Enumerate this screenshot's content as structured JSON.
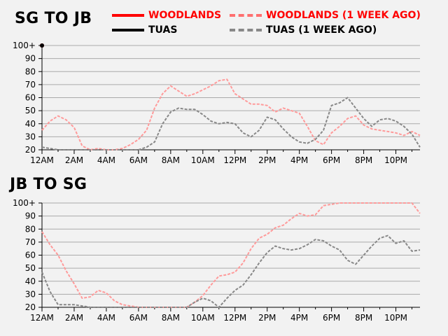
{
  "chart_data": [
    {
      "type": "line",
      "title": "SG TO JB",
      "x_ticks": [
        "12AM",
        "2AM",
        "4AM",
        "6AM",
        "8AM",
        "10AM",
        "12PM",
        "2PM",
        "4PM",
        "6PM",
        "8PM",
        "10PM"
      ],
      "y_ticks": [
        "20",
        "30",
        "40",
        "50",
        "60",
        "70",
        "80",
        "90",
        "100+"
      ],
      "ylim": [
        20,
        100
      ],
      "xlim_hours": [
        0,
        23.5
      ],
      "grid": true,
      "series": [
        {
          "name": "WOODLANDS",
          "color": "#ff0000",
          "style": "solid",
          "x_hours": [
            0
          ],
          "values": [
            100
          ]
        },
        {
          "name": "TUAS",
          "color": "#000000",
          "style": "solid",
          "x_hours": [
            0
          ],
          "values": [
            100
          ]
        },
        {
          "name": "WOODLANDS (1 WEEK AGO)",
          "color": "#ff9a9a",
          "style": "dashed",
          "x_hours": [
            0,
            0.5,
            1,
            1.5,
            2,
            2.5,
            3,
            3.5,
            4,
            4.5,
            5,
            5.5,
            6,
            6.5,
            7,
            7.5,
            8,
            8.5,
            9,
            9.5,
            10,
            10.5,
            11,
            11.5,
            12,
            12.5,
            13,
            13.5,
            14,
            14.5,
            15,
            15.5,
            16,
            16.5,
            17,
            17.5,
            18,
            18.5,
            19,
            19.5,
            20,
            20.5,
            21,
            21.5,
            22,
            22.5,
            23,
            23.5
          ],
          "values": [
            35,
            42,
            46,
            43,
            37,
            23,
            20,
            21,
            20,
            20,
            21,
            24,
            28,
            35,
            52,
            63,
            69,
            65,
            61,
            63,
            66,
            69,
            73,
            74,
            63,
            59,
            55,
            55,
            54,
            49,
            52,
            50,
            48,
            38,
            27,
            24,
            33,
            38,
            44,
            46,
            39,
            36,
            35,
            34,
            33,
            31,
            34,
            31
          ]
        },
        {
          "name": "TUAS (1 WEEK AGO)",
          "color": "#888888",
          "style": "dashed",
          "x_hours": [
            0,
            0.5,
            1,
            1.5,
            2,
            2.5,
            3,
            3.5,
            4,
            4.5,
            5,
            5.5,
            6,
            6.5,
            7,
            7.5,
            8,
            8.5,
            9,
            9.5,
            10,
            10.5,
            11,
            11.5,
            12,
            12.5,
            13,
            13.5,
            14,
            14.5,
            15,
            15.5,
            16,
            16.5,
            17,
            17.5,
            18,
            18.5,
            19,
            19.5,
            20,
            20.5,
            21,
            21.5,
            22,
            22.5,
            23,
            23.5
          ],
          "values": [
            22,
            21,
            20,
            20,
            20,
            20,
            20,
            20,
            20,
            20,
            20,
            20,
            20,
            22,
            26,
            40,
            49,
            52,
            51,
            51,
            47,
            42,
            40,
            41,
            40,
            33,
            30,
            35,
            45,
            43,
            36,
            30,
            26,
            25,
            28,
            35,
            54,
            56,
            60,
            52,
            44,
            38,
            43,
            44,
            42,
            38,
            32,
            22
          ]
        }
      ]
    },
    {
      "type": "line",
      "title": "JB TO SG",
      "x_ticks": [
        "12AM",
        "2AM",
        "4AM",
        "6AM",
        "8AM",
        "10AM",
        "12PM",
        "2PM",
        "4PM",
        "6PM",
        "8PM",
        "10PM"
      ],
      "y_ticks": [
        "20",
        "30",
        "40",
        "50",
        "60",
        "70",
        "80",
        "90",
        "100+"
      ],
      "ylim": [
        20,
        100
      ],
      "xlim_hours": [
        0,
        23.5
      ],
      "grid": true,
      "series": [
        {
          "name": "WOODLANDS (1 WEEK AGO)",
          "color": "#ff9a9a",
          "style": "dashed",
          "x_hours": [
            0,
            0.5,
            1,
            1.5,
            2,
            2.5,
            3,
            3.5,
            4,
            4.5,
            5,
            5.5,
            6,
            6.5,
            7,
            7.5,
            8,
            8.5,
            9,
            9.5,
            10,
            10.5,
            11,
            11.5,
            12,
            12.5,
            13,
            13.5,
            14,
            14.5,
            15,
            15.5,
            16,
            16.5,
            17,
            17.5,
            18,
            18.5,
            19,
            19.5,
            20,
            20.5,
            21,
            21.5,
            22,
            22.5,
            23,
            23.5
          ],
          "values": [
            78,
            68,
            60,
            48,
            38,
            27,
            28,
            33,
            31,
            25,
            22,
            21,
            20,
            20,
            20,
            20,
            20,
            20,
            20,
            24,
            29,
            37,
            44,
            45,
            47,
            54,
            65,
            73,
            76,
            81,
            83,
            88,
            92,
            90,
            91,
            98,
            99,
            100,
            100,
            100,
            100,
            100,
            100,
            100,
            100,
            100,
            100,
            92
          ]
        },
        {
          "name": "TUAS (1 WEEK AGO)",
          "color": "#888888",
          "style": "dashed",
          "x_hours": [
            0,
            0.5,
            1,
            1.5,
            2,
            2.5,
            3,
            3.5,
            4,
            4.5,
            5,
            5.5,
            6,
            6.5,
            7,
            7.5,
            8,
            8.5,
            9,
            9.5,
            10,
            10.5,
            11,
            11.5,
            12,
            12.5,
            13,
            13.5,
            14,
            14.5,
            15,
            15.5,
            16,
            16.5,
            17,
            17.5,
            18,
            18.5,
            19,
            19.5,
            20,
            20.5,
            21,
            21.5,
            22,
            22.5,
            23,
            23.5
          ],
          "values": [
            47,
            32,
            22,
            22,
            22,
            21,
            20,
            20,
            20,
            20,
            20,
            20,
            20,
            20,
            20,
            20,
            20,
            20,
            20,
            24,
            27,
            25,
            20,
            27,
            33,
            37,
            45,
            54,
            62,
            67,
            65,
            64,
            65,
            68,
            72,
            71,
            67,
            64,
            56,
            53,
            60,
            67,
            73,
            75,
            69,
            71,
            63,
            64
          ]
        }
      ]
    }
  ],
  "legend": [
    {
      "label": "WOODLANDS",
      "color": "#ff0000",
      "style": "solid"
    },
    {
      "label": "WOODLANDS (1 WEEK AGO)",
      "color": "#ff7070",
      "style": "dashed"
    },
    {
      "label": "TUAS",
      "color": "#000000",
      "style": "solid"
    },
    {
      "label": "TUAS (1 WEEK AGO)",
      "color": "#888888",
      "style": "dashed"
    }
  ]
}
